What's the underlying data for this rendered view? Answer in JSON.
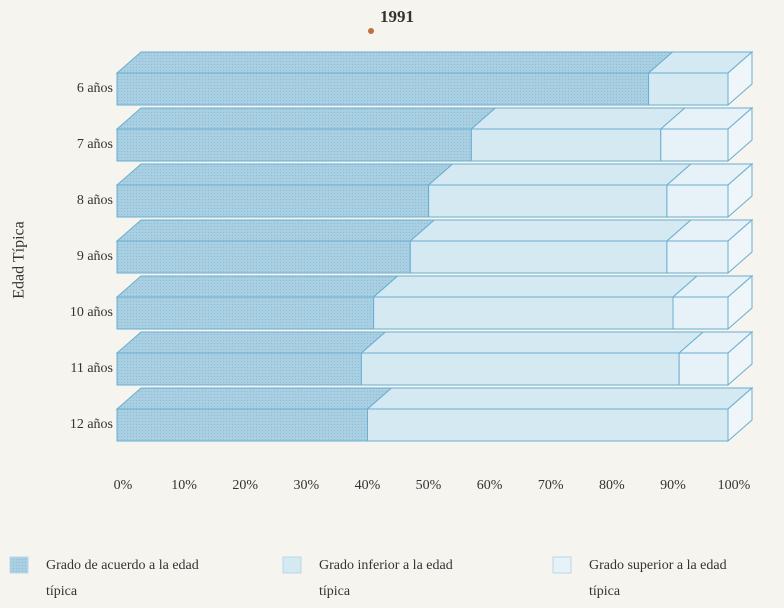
{
  "chart_data": {
    "type": "bar3d_stacked_horizontal",
    "title": "1991",
    "ylabel": "Edad Típica",
    "categories": [
      "6 años",
      "7 años",
      "8 años",
      "9 años",
      "10 años",
      "11 años",
      "12 años"
    ],
    "series": [
      {
        "name": "Grado de acuerdo  a la edad típica",
        "color": "#a9cfe3",
        "values": [
          87,
          58,
          51,
          48,
          42,
          40,
          41
        ]
      },
      {
        "name": "Grado inferior a la edad típica",
        "color": "#d4e9f2",
        "values": [
          13,
          31,
          39,
          42,
          49,
          52,
          59
        ]
      },
      {
        "name": "Grado superior a la edad típica",
        "color": "#e6f2f7",
        "values": [
          0,
          11,
          10,
          10,
          9,
          8,
          0
        ]
      }
    ],
    "xlim": [
      0,
      100
    ],
    "xticks": [
      {
        "value": 0,
        "label": "0%"
      },
      {
        "value": 10,
        "label": "10%"
      },
      {
        "value": 20,
        "label": "20%"
      },
      {
        "value": 30,
        "label": "30%"
      },
      {
        "value": 40,
        "label": "40%"
      },
      {
        "value": 50,
        "label": "50%"
      },
      {
        "value": 60,
        "label": "60%"
      },
      {
        "value": 70,
        "label": "70%"
      },
      {
        "value": 80,
        "label": "80%"
      },
      {
        "value": 90,
        "label": "90%"
      },
      {
        "value": 100,
        "label": "100%"
      }
    ]
  }
}
